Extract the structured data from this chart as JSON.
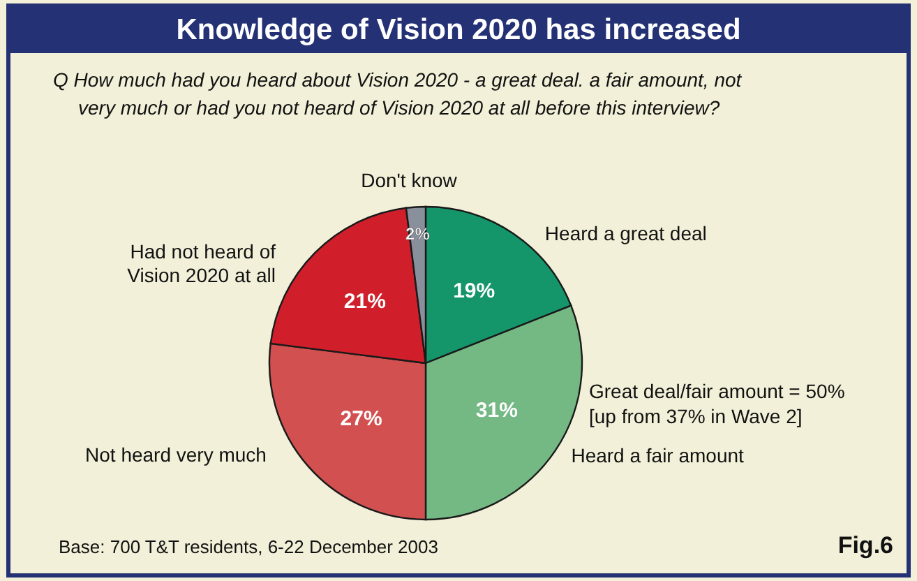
{
  "chart_data": {
    "type": "pie",
    "title": "Knowledge of Vision 2020 has increased",
    "subtitle": "Q How much had you heard about Vision 2020 - a great deal. a fair amount, not very much or had you not heard of Vision 2020 at all before this interview?",
    "categories": [
      "Heard a great deal",
      "Heard a fair amount",
      "Not heard very much",
      "Had not heard of Vision 2020 at all",
      "Don't know"
    ],
    "values": [
      19,
      31,
      27,
      21,
      2
    ],
    "value_labels": [
      "19%",
      "31%",
      "27%",
      "21%",
      "2%"
    ],
    "colors": [
      "#14966a",
      "#74b883",
      "#d2504f",
      "#d01f2a",
      "#8a8f9c"
    ],
    "annotations": [
      "Great deal/fair amount = 50% [up from 37% in Wave 2]",
      "Base: 700 T&T residents, 6-22 December 2003",
      "Fig.6"
    ]
  }
}
